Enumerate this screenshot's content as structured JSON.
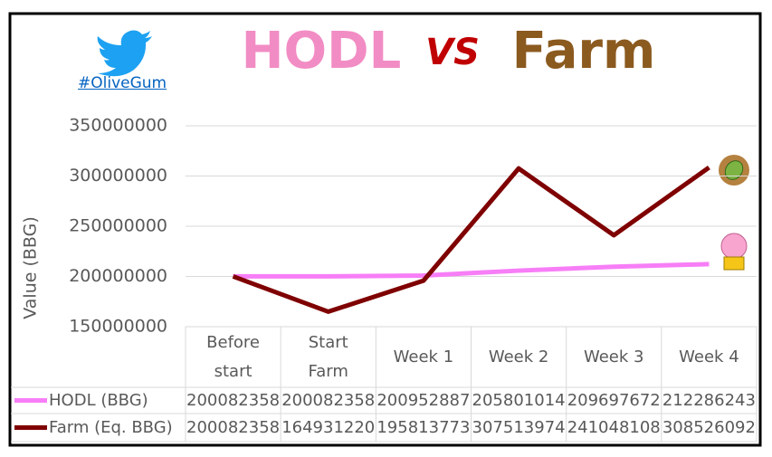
{
  "chart_data": {
    "type": "line",
    "title_parts": [
      "HODL",
      "VS",
      "Farm"
    ],
    "title_colors": [
      "#f28cc4",
      "#c00000",
      "#8b5a1f"
    ],
    "hashtag": "#OliveGum",
    "y_label": "Value (BBG)",
    "categories": [
      "Before start",
      "Start Farm",
      "Week 1",
      "Week 2",
      "Week 3",
      "Week 4"
    ],
    "series": [
      {
        "name": "HODL (BBG)",
        "color": "#f77ef7",
        "values": [
          200082358,
          200082358,
          200952887,
          205801014,
          209697672,
          212286243
        ]
      },
      {
        "name": "Farm (Eq. BBG)",
        "color": "#7f0000",
        "values": [
          200082358,
          164931220,
          195813773,
          307513974,
          241048108,
          308526092
        ]
      }
    ],
    "ylim": [
      150000000,
      350000000
    ],
    "yticks": [
      150000000,
      200000000,
      250000000,
      300000000,
      350000000
    ],
    "grid": true
  }
}
